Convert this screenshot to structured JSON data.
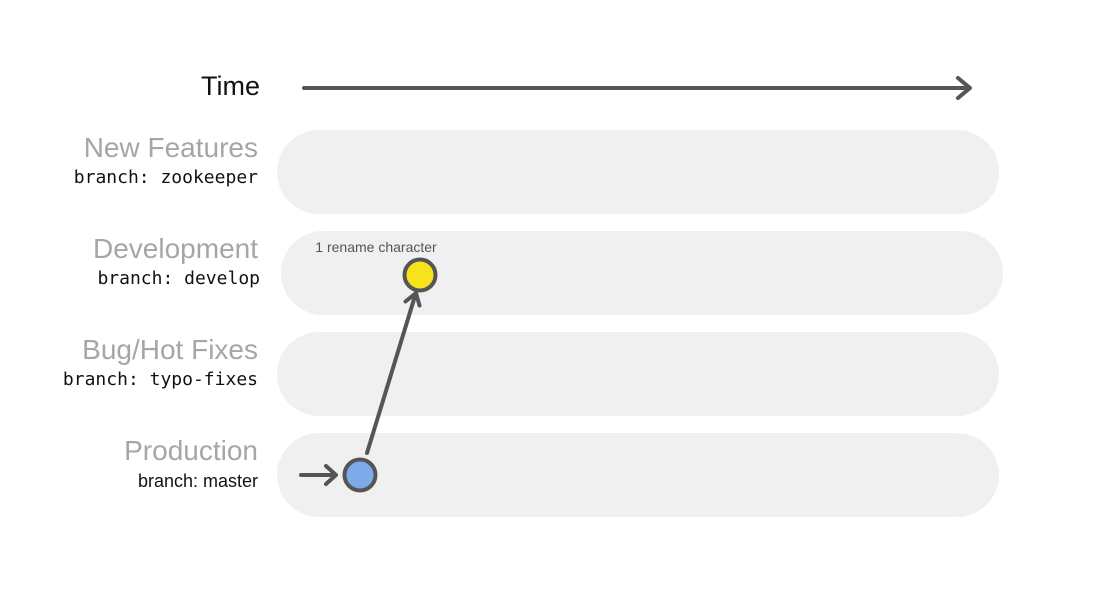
{
  "time_label": "Time",
  "lanes": [
    {
      "title": "New Features",
      "branch": "branch: zookeeper"
    },
    {
      "title": "Development",
      "branch": "branch: develop"
    },
    {
      "title": "Bug/Hot Fixes",
      "branch": "branch: typo-fixes"
    },
    {
      "title": "Production",
      "branch": "branch: master"
    }
  ],
  "commits": {
    "develop_commit": {
      "label": "1 rename character",
      "color": "#f7e21c"
    },
    "master_commit": {
      "color": "#7eaaea"
    }
  },
  "colors": {
    "lane_bg": "#f0f0f0",
    "arrow": "#555555",
    "title_gray": "#a6a6a6"
  }
}
